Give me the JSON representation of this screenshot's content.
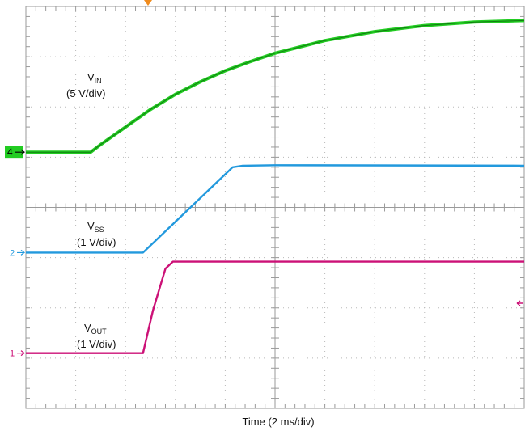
{
  "chart_data": {
    "type": "line",
    "xlabel": "Time (2 ms/div)",
    "grid": true,
    "divisions": {
      "x": 10,
      "y": 8
    },
    "series": [
      {
        "name": "VIN",
        "label_main": "V",
        "label_sub": "IN",
        "label_scale": "(5 V/div)",
        "channel": "4",
        "color": "#22cc22",
        "x_div": [
          0,
          1.3,
          1.5,
          2,
          2.5,
          3,
          3.5,
          4,
          4.5,
          5,
          6,
          7,
          8,
          9,
          10
        ],
        "y_div": [
          5.1,
          5.1,
          5.25,
          5.6,
          5.95,
          6.25,
          6.5,
          6.72,
          6.9,
          7.07,
          7.32,
          7.5,
          7.62,
          7.69,
          7.72
        ]
      },
      {
        "name": "VSS",
        "label_main": "V",
        "label_sub": "SS",
        "label_scale": "(1 V/div)",
        "channel": "2",
        "color": "#2299dd",
        "x_div": [
          0,
          2.35,
          4.15,
          4.35,
          5,
          10
        ],
        "y_div": [
          3.1,
          3.1,
          4.8,
          4.83,
          4.84,
          4.83
        ]
      },
      {
        "name": "VOUT",
        "label_main": "V",
        "label_sub": "OUT",
        "label_scale": "(1 V/div)",
        "channel": "1",
        "color": "#cc1177",
        "x_div": [
          0,
          2.35,
          2.55,
          2.8,
          2.95,
          10
        ],
        "y_div": [
          1.1,
          1.1,
          1.95,
          2.78,
          2.92,
          2.92
        ]
      }
    ]
  }
}
